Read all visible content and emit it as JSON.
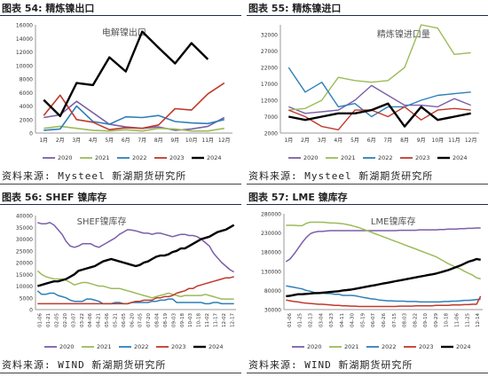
{
  "series_colors": {
    "2020": "#7b5fa8",
    "2021": "#9bbb59",
    "2022": "#2e7fb8",
    "2023": "#c0392b",
    "2024": "#000000"
  },
  "panels": [
    {
      "fig_title": "图表 54: 精炼镍出口",
      "source": "资料来源: Mysteel 新湖期货研究所",
      "chart_data": {
        "type": "line",
        "title": "电解镍出口",
        "x": [
          "1月",
          "2月",
          "3月",
          "4月",
          "5月",
          "6月",
          "7月",
          "8月",
          "9月",
          "10月",
          "11月",
          "12月"
        ],
        "xticks": [
          "1月",
          "2月",
          "3月",
          "4月",
          "5月",
          "6月",
          "7月",
          "8月",
          "9月",
          "10月",
          "11月",
          "12月"
        ],
        "yticks": [
          "0",
          "2000",
          "4000",
          "6000",
          "8000",
          "10000",
          "12000",
          "14000",
          "16000"
        ],
        "ylim": [
          0,
          16000
        ],
        "series": [
          {
            "name": "2020",
            "values": [
              2300,
              2700,
              4700,
              3000,
              1300,
              900,
              700,
              900,
              400,
              600,
              1000,
              2300
            ]
          },
          {
            "name": "2021",
            "values": [
              700,
              1000,
              700,
              400,
              300,
              500,
              300,
              700,
              600,
              300,
              300,
              700
            ]
          },
          {
            "name": "2022",
            "values": [
              400,
              600,
              4000,
              1700,
              1300,
              2400,
              2300,
              2600,
              1700,
              1500,
              1400,
              2000
            ]
          },
          {
            "name": "2023",
            "values": [
              2600,
              5600,
              2000,
              1600,
              500,
              800,
              700,
              1200,
              3600,
              3400,
              5800,
              7400
            ]
          },
          {
            "name": "2024",
            "values": [
              4900,
              2500,
              7400,
              7100,
              11200,
              9100,
              15000,
              12600,
              10300,
              13300,
              10900,
              null
            ]
          }
        ],
        "legend": [
          "2020",
          "2021",
          "2022",
          "2023",
          "2024"
        ],
        "legend_position": "bottom"
      }
    },
    {
      "fig_title": "图表 55: 精炼镍进口",
      "source": "资料来源: Mysteel 新湖期货研究所",
      "chart_data": {
        "type": "line",
        "title": "精炼镍进口量",
        "x": [
          "1月",
          "2月",
          "3月",
          "4月",
          "5月",
          "6月",
          "7月",
          "8月",
          "9月",
          "10月",
          "11月",
          "12月"
        ],
        "xticks": [
          "1月",
          "2月",
          "3月",
          "4月",
          "5月",
          "6月",
          "7月",
          "8月",
          "9月",
          "10月",
          "11月",
          "12月"
        ],
        "yticks": [
          "2000",
          "7000",
          "12000",
          "17000",
          "22000",
          "27000",
          "32000"
        ],
        "ylim": [
          2000,
          35000
        ],
        "series": [
          {
            "name": "2020",
            "values": [
              10000,
              8000,
              8500,
              9000,
              12000,
              16500,
              13500,
              10500,
              10500,
              10000,
              12500,
              10500
            ]
          },
          {
            "name": "2021",
            "values": [
              9000,
              9500,
              12000,
              19000,
              18000,
              17500,
              18000,
              22000,
              35000,
              34000,
              26000,
              26500
            ]
          },
          {
            "name": "2022",
            "values": [
              22000,
              14500,
              17500,
              10000,
              11000,
              7000,
              10000,
              10000,
              12000,
              13500,
              14000,
              14500
            ]
          },
          {
            "name": "2023",
            "values": [
              9000,
              7000,
              4000,
              3000,
              9000,
              9000,
              7000,
              10000,
              6000,
              9000,
              9500,
              9000
            ]
          },
          {
            "name": "2024",
            "values": [
              7000,
              6000,
              7000,
              8000,
              8000,
              9000,
              11000,
              4000,
              10000,
              6000,
              7000,
              8000
            ]
          }
        ],
        "legend": [
          "2020",
          "2021",
          "2022",
          "2023",
          "2024"
        ],
        "legend_position": "bottom"
      }
    },
    {
      "fig_title": "图表 56: SHEF 镍库存",
      "source": "资料来源: WIND 新湖期货研究所",
      "chart_data": {
        "type": "line",
        "title": "SHEF镍库存",
        "x_count": 49,
        "xticks": [
          "01-06",
          "01-21",
          "02-05",
          "02-20",
          "03-07",
          "03-22",
          "04-06",
          "04-21",
          "05-06",
          "05-21",
          "06-05",
          "06-20",
          "07-05",
          "07-20",
          "08-04",
          "08-19",
          "09-03",
          "09-18",
          "10-03",
          "10-18",
          "11-02",
          "11-17",
          "12-02",
          "12-17"
        ],
        "yticks": [
          "0",
          "5000",
          "10000",
          "15000",
          "20000",
          "25000",
          "30000",
          "35000",
          "40000"
        ],
        "ylim": [
          0,
          40000
        ],
        "series": [
          {
            "name": "2020",
            "values": [
              37000,
              36500,
              36500,
              37000,
              36000,
              34000,
              32000,
              29000,
              27000,
              26500,
              27000,
              28000,
              28000,
              28000,
              27000,
              26500,
              27500,
              28500,
              29500,
              30500,
              32000,
              33000,
              34000,
              33800,
              33500,
              33000,
              32500,
              32500,
              32000,
              32500,
              32500,
              32000,
              31500,
              31000,
              31500,
              32000,
              32000,
              31500,
              31500,
              31000,
              30000,
              28500,
              27000,
              24000,
              22000,
              20000,
              18500,
              17000,
              16000
            ]
          },
          {
            "name": "2021",
            "values": [
              16500,
              15000,
              14000,
              13500,
              13000,
              13000,
              13000,
              12500,
              11500,
              10500,
              11000,
              11500,
              11500,
              11000,
              10500,
              10000,
              10000,
              9500,
              9000,
              9000,
              9000,
              8500,
              8000,
              7500,
              7000,
              6500,
              6000,
              5500,
              5000,
              5500,
              6000,
              6500,
              7000,
              6500,
              6000,
              5500,
              6000,
              6000,
              6000,
              6000,
              6000,
              6500,
              6000,
              5500,
              5000,
              4500,
              4500,
              4500,
              4500
            ]
          },
          {
            "name": "2022",
            "values": [
              8000,
              6500,
              6500,
              7000,
              7000,
              6000,
              5500,
              5000,
              4000,
              3500,
              3500,
              3500,
              4500,
              4500,
              4000,
              3500,
              2500,
              2500,
              2500,
              3000,
              3000,
              2500,
              2500,
              3000,
              3000,
              3000,
              3000,
              3000,
              3500,
              3500,
              4000,
              4000,
              4500,
              4500,
              3000,
              3000,
              3000,
              3000,
              3000,
              3000,
              3000,
              2500,
              2500,
              3000,
              3000,
              2500,
              2500,
              2500,
              2500
            ]
          },
          {
            "name": "2023",
            "values": [
              2500,
              2500,
              2500,
              2500,
              2500,
              2500,
              2500,
              2500,
              2500,
              2500,
              2500,
              2500,
              2500,
              2500,
              2500,
              2500,
              2500,
              2500,
              2500,
              2500,
              2500,
              2500,
              2500,
              3000,
              3500,
              3500,
              4000,
              4000,
              4000,
              5000,
              5000,
              5500,
              5500,
              6000,
              7000,
              7500,
              8000,
              9000,
              9000,
              10000,
              10500,
              11000,
              11500,
              12000,
              12500,
              13000,
              13500,
              13500,
              14000
            ]
          },
          {
            "name": "2024",
            "values": [
              10000,
              10500,
              11000,
              11500,
              12000,
              12000,
              12500,
              13000,
              14000,
              15000,
              16500,
              17000,
              17500,
              18000,
              18500,
              19500,
              20500,
              21000,
              21500,
              21000,
              20500,
              20000,
              19500,
              19000,
              18500,
              19000,
              20000,
              20500,
              21500,
              22500,
              23000,
              23000,
              23500,
              24500,
              25000,
              26000,
              26000,
              27000,
              28000,
              29000,
              30000,
              30500,
              31000,
              32000,
              33000,
              33500,
              34000,
              35000,
              36000
            ]
          }
        ],
        "legend": [
          "2020",
          "2021",
          "2022",
          "2023",
          "2024"
        ],
        "legend_position": "bottom"
      }
    },
    {
      "fig_title": "图表 57: LME 镍库存",
      "source": "资料来源: WIND 新湖期货研究所",
      "chart_data": {
        "type": "line",
        "title": "LME镍库存",
        "x_count": 49,
        "xticks": [
          "01-06",
          "01-25",
          "02-13",
          "03-04",
          "03-23",
          "04-11",
          "04-30",
          "05-19",
          "06-07",
          "06-26",
          "07-15",
          "08-03",
          "08-22",
          "09-10",
          "09-29",
          "10-18",
          "11-06",
          "11-25",
          "12-14"
        ],
        "yticks": [
          "30000",
          "80000",
          "130000",
          "180000",
          "230000",
          "280000"
        ],
        "ylim": [
          30000,
          280000
        ],
        "series": [
          {
            "name": "2020",
            "values": [
              155000,
              162000,
              175000,
              190000,
              205000,
              218000,
              228000,
              232000,
              234000,
              234000,
              235000,
              236000,
              236000,
              236000,
              236000,
              236000,
              236000,
              236000,
              236000,
              236000,
              236000,
              236000,
              236000,
              236000,
              236000,
              236000,
              236000,
              236000,
              237000,
              237000,
              237000,
              237000,
              237000,
              238000,
              238000,
              238000,
              238000,
              238000,
              239000,
              239000,
              240000,
              240000,
              240000,
              241000,
              241000,
              242000,
              242000,
              243000,
              243000
            ]
          },
          {
            "name": "2021",
            "values": [
              250000,
              250000,
              250000,
              249000,
              249000,
              255000,
              258000,
              258000,
              258000,
              258000,
              257000,
              256000,
              256000,
              255000,
              254000,
              252000,
              250000,
              247000,
              244000,
              240000,
              236000,
              232000,
              228000,
              224000,
              220000,
              216000,
              212000,
              208000,
              204000,
              200000,
              196000,
              192000,
              188000,
              184000,
              180000,
              176000,
              172000,
              168000,
              162000,
              156000,
              150000,
              145000,
              140000,
              136000,
              130000,
              125000,
              120000,
              113000,
              110000
            ]
          },
          {
            "name": "2022",
            "values": [
              92000,
              90000,
              88000,
              86000,
              84000,
              80000,
              78000,
              74000,
              74000,
              73000,
              72000,
              72000,
              70000,
              70000,
              67000,
              67000,
              67000,
              66000,
              64000,
              62000,
              60000,
              58000,
              57000,
              55000,
              54000,
              53000,
              53000,
              52000,
              52000,
              52000,
              51000,
              51000,
              51000,
              50000,
              50000,
              50000,
              50000,
              50000,
              50000,
              51000,
              51000,
              52000,
              52000,
              53000,
              54000,
              54000,
              55000,
              56000,
              57000
            ]
          },
          {
            "name": "2023",
            "values": [
              55000,
              53000,
              51000,
              50000,
              48000,
              47000,
              46000,
              45000,
              44000,
              44000,
              43000,
              42000,
              41000,
              41000,
              40000,
              40000,
              39000,
              39000,
              38000,
              38000,
              38000,
              38000,
              38000,
              38000,
              38000,
              38000,
              38000,
              38000,
              39000,
              39000,
              39000,
              39000,
              40000,
              40000,
              40000,
              40000,
              40000,
              41000,
              41000,
              41000,
              41000,
              42000,
              42000,
              42000,
              43000,
              43000,
              44000,
              44000,
              65000
            ]
          },
          {
            "name": "2024",
            "values": [
              65000,
              66000,
              68000,
              70000,
              70000,
              71000,
              72000,
              73000,
              73000,
              74000,
              75000,
              76000,
              77000,
              78000,
              80000,
              81000,
              82000,
              84000,
              86000,
              88000,
              90000,
              92000,
              94000,
              96000,
              98000,
              100000,
              102000,
              104000,
              106000,
              108000,
              110000,
              112000,
              114000,
              116000,
              118000,
              120000,
              122000,
              124000,
              127000,
              130000,
              133000,
              137000,
              141000,
              145000,
              150000,
              155000,
              158000,
              162000,
              160000
            ]
          }
        ],
        "legend": [
          "2020",
          "2021",
          "2022",
          "2023",
          "2024"
        ],
        "legend_position": "bottom"
      }
    }
  ]
}
